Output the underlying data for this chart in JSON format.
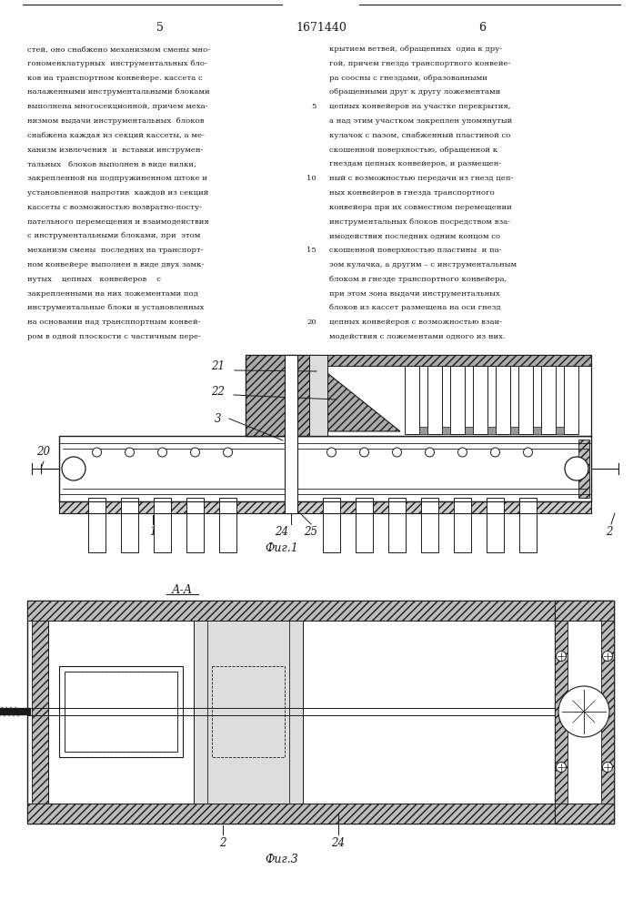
{
  "title": "1671440",
  "page_left": "5",
  "page_right": "6",
  "fig1_label": "Фиг.1",
  "fig3_label": "Фиг.3",
  "fig3_section": "А-А",
  "bg_color": "#ffffff",
  "lc": "#1a1a1a",
  "left_text_lines": [
    "стей, оно снабжено механизмом смены мно-",
    "гономенклатурных  инструментальных бло-",
    "ков на транспортном конвейере. кассета с",
    "налаженными инструментальными блоками",
    "выполнена многосекционной, причем меха-",
    "низмом выдачи инструментальных  блоков",
    "снабжена каждая из секций кассеты, а ме-",
    "ханизм извлечения  и  вставки инструмен-",
    "тальных   блоков выполнен в виде вилки,",
    "закрепленной на подпружиненном штоке и",
    "установленной напротив  каждой из секций",
    "кассеты с возможностью возвратно-посту-",
    "пательного перемещения и взаимодействия",
    "с инструментальными блоками, при  этом",
    "механизм смены  последних на транспорт-",
    "ном конвейере выполнен в виде двух замк-",
    "нутых    цепных   конвейеров    с",
    "закрепленными на них ложементами под",
    "инструментальные блоки и установленных",
    "на основании над трансппортным конвей-",
    "ром в одной плоскости с частичным пере-"
  ],
  "right_text_lines": [
    "крытием ветвей, обращенных  одна к дру-",
    "гой, причем гнезда транспортного конвейе-",
    "ра соосны с гнездами, образованными",
    "обращенными друг к другу ложементами",
    "цепных конвейеров на участке перекрытия,",
    "а над этим участком закреплен упомянутый",
    "кулачок с пазом, снабженный пластиной со",
    "скошенной поверхностью, обращенной к",
    "гнездам цепных конвейеров, и размещен-",
    "ный с возможностью передачи из гнезд цеп-",
    "ных конвейеров в гнезда транспортного",
    "конвейера при их совместном перемещении",
    "инструментальных блоков посредством вза-",
    "имодействия последних одним концом со",
    "скошенной поверхностью пластины  и па-",
    "зом кулачка, а другим – с инструментальным",
    "блоком в гнезде транспортного конвейера,",
    "при этом зона выдачи инструментальных",
    "блоков из кассет размещена на оси гнезд",
    "цепных конвейеров с возможностью взаи-",
    "модействия с ложементами одного из них."
  ],
  "line_nums": {
    "5": 4,
    "10": 9,
    "15": 14,
    "20": 19
  }
}
